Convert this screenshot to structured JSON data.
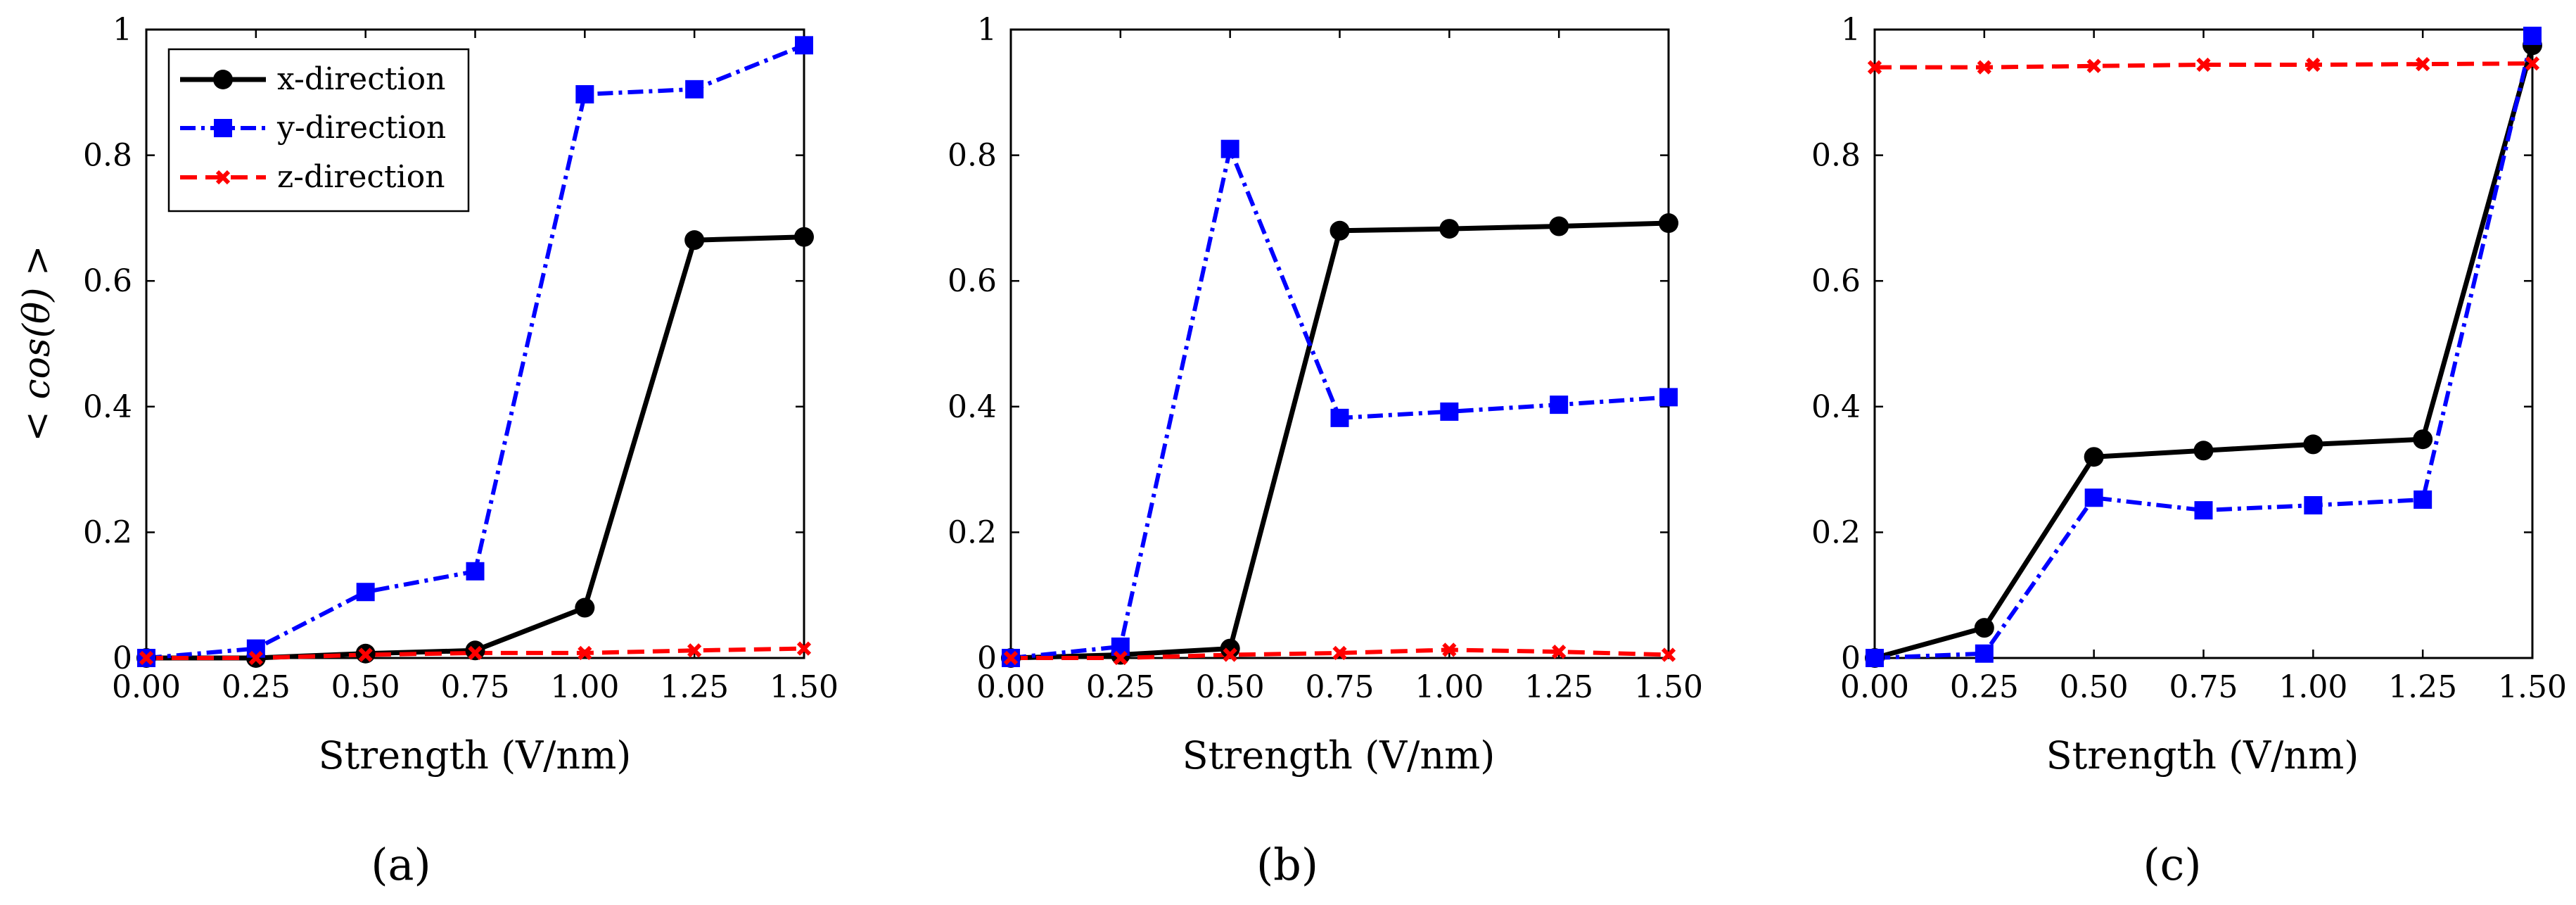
{
  "figure": {
    "ylabel": "< cos(θ) >",
    "panel_labels": [
      "(a)",
      "(b)",
      "(c)"
    ]
  },
  "colors": {
    "x": "#000000",
    "y": "#0000ff",
    "z": "#ff0000"
  },
  "legend": {
    "entries": [
      "x-direction",
      "y-direction",
      "z-direction"
    ]
  },
  "chart_data": [
    {
      "type": "line",
      "panel": "(a)",
      "xlabel": "Strength (V/nm)",
      "ylabel": "< cos(θ) >",
      "x": [
        0.0,
        0.25,
        0.5,
        0.75,
        1.0,
        1.25,
        1.5
      ],
      "xticks": [
        "0.00",
        "0.25",
        "0.50",
        "0.75",
        "1.00",
        "1.25",
        "1.50"
      ],
      "yticks": [
        "0",
        "0.2",
        "0.4",
        "0.6",
        "0.8",
        "1"
      ],
      "xlim": [
        0,
        1.5
      ],
      "ylim": [
        0,
        1
      ],
      "legend": "top-left",
      "series": [
        {
          "name": "x-direction",
          "values": [
            0.0,
            0.0,
            0.007,
            0.012,
            0.08,
            0.665,
            0.67
          ]
        },
        {
          "name": "y-direction",
          "values": [
            0.0,
            0.015,
            0.105,
            0.138,
            0.897,
            0.905,
            0.975
          ]
        },
        {
          "name": "z-direction",
          "values": [
            0.0,
            0.0,
            0.005,
            0.008,
            0.008,
            0.012,
            0.015
          ]
        }
      ]
    },
    {
      "type": "line",
      "panel": "(b)",
      "xlabel": "Strength (V/nm)",
      "ylabel": "",
      "x": [
        0.0,
        0.25,
        0.5,
        0.75,
        1.0,
        1.25,
        1.5
      ],
      "xticks": [
        "0.00",
        "0.25",
        "0.50",
        "0.75",
        "1.00",
        "1.25",
        "1.50"
      ],
      "yticks": [
        "0",
        "0.2",
        "0.4",
        "0.6",
        "0.8",
        "1"
      ],
      "xlim": [
        0,
        1.5
      ],
      "ylim": [
        0,
        1
      ],
      "series": [
        {
          "name": "x-direction",
          "values": [
            0.0,
            0.005,
            0.015,
            0.68,
            0.683,
            0.687,
            0.692
          ]
        },
        {
          "name": "y-direction",
          "values": [
            0.0,
            0.018,
            0.81,
            0.382,
            0.392,
            0.403,
            0.415
          ]
        },
        {
          "name": "z-direction",
          "values": [
            0.0,
            0.0,
            0.005,
            0.008,
            0.013,
            0.01,
            0.005
          ]
        }
      ]
    },
    {
      "type": "line",
      "panel": "(c)",
      "xlabel": "Strength (V/nm)",
      "ylabel": "",
      "x": [
        0.0,
        0.25,
        0.5,
        0.75,
        1.0,
        1.25,
        1.5
      ],
      "xticks": [
        "0.00",
        "0.25",
        "0.50",
        "0.75",
        "1.00",
        "1.25",
        "1.50"
      ],
      "yticks": [
        "0",
        "0.2",
        "0.4",
        "0.6",
        "0.8",
        "1"
      ],
      "xlim": [
        0,
        1.5
      ],
      "ylim": [
        0,
        1
      ],
      "series": [
        {
          "name": "x-direction",
          "values": [
            0.0,
            0.048,
            0.32,
            0.33,
            0.34,
            0.348,
            0.975
          ]
        },
        {
          "name": "y-direction",
          "values": [
            0.0,
            0.007,
            0.255,
            0.235,
            0.243,
            0.252,
            0.99
          ]
        },
        {
          "name": "z-direction",
          "values": [
            0.94,
            0.94,
            0.942,
            0.944,
            0.944,
            0.945,
            0.946
          ]
        }
      ]
    }
  ]
}
